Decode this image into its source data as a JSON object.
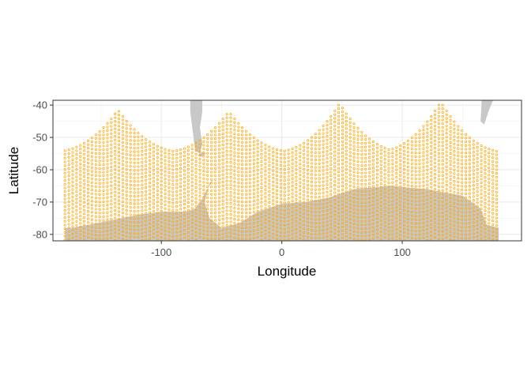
{
  "chart_data": {
    "type": "map-scatter",
    "xlabel": "Longitude",
    "ylabel": "Latitude",
    "xlim": [
      -190,
      199
    ],
    "ylim": [
      -82,
      -38.5
    ],
    "x_ticks": [
      -100,
      0,
      100
    ],
    "x_tick_labels": [
      "-100",
      "0",
      "100"
    ],
    "y_ticks": [
      -40,
      -50,
      -60,
      -70,
      -80
    ],
    "y_tick_labels": [
      "-40",
      "-50",
      "-60",
      "-70",
      "-80"
    ],
    "grid": true,
    "theme": "bw",
    "point_color": "#FFA500",
    "land_color": "#C8C8C8",
    "orbit_peaks_lon": [
      -136,
      -44,
      48,
      132
    ],
    "orbit_peaks_lat": [
      -41.5,
      -42,
      -39.5,
      -39
    ],
    "orbit_base_lat": -54.5,
    "lon_range": [
      -180,
      180
    ],
    "lat_min": -82
  }
}
